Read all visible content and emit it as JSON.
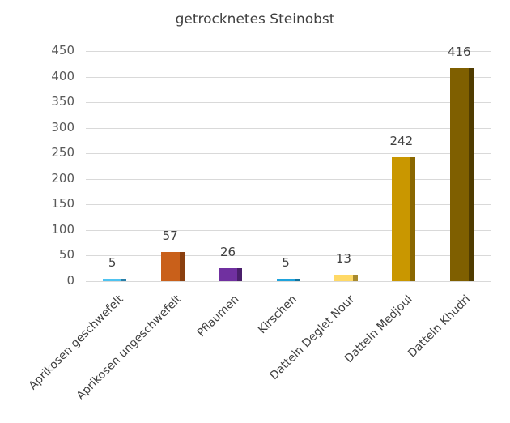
{
  "chart_data": {
    "type": "bar",
    "title": "getrocknetes Steinobst",
    "xlabel": "",
    "ylabel": "",
    "ylim": [
      0,
      450
    ],
    "yticks": [
      0,
      50,
      100,
      150,
      200,
      250,
      300,
      350,
      400,
      450
    ],
    "grid": true,
    "legend": null,
    "categories": [
      "Aprikosen geschwefelt",
      "Aprikosen ungeschwefelt",
      "Pflaumen",
      "Kirschen",
      "Datteln Deglet Nour",
      "Datteln Medjoul",
      "Datteln Khudri"
    ],
    "values": [
      5,
      57,
      26,
      5,
      13,
      242,
      416
    ],
    "colors": [
      "#4fc3f0",
      "#c9601a",
      "#7030a0",
      "#1fa3dc",
      "#ffd966",
      "#c99700",
      "#7f5f00"
    ],
    "side_colors": [
      "#2a7fa8",
      "#8a3f0f",
      "#4a1f6b",
      "#12729c",
      "#a88a2e",
      "#8a6700",
      "#4f3b00"
    ],
    "data_labels": [
      "5",
      "57",
      "26",
      "5",
      "13",
      "242",
      "416"
    ]
  }
}
